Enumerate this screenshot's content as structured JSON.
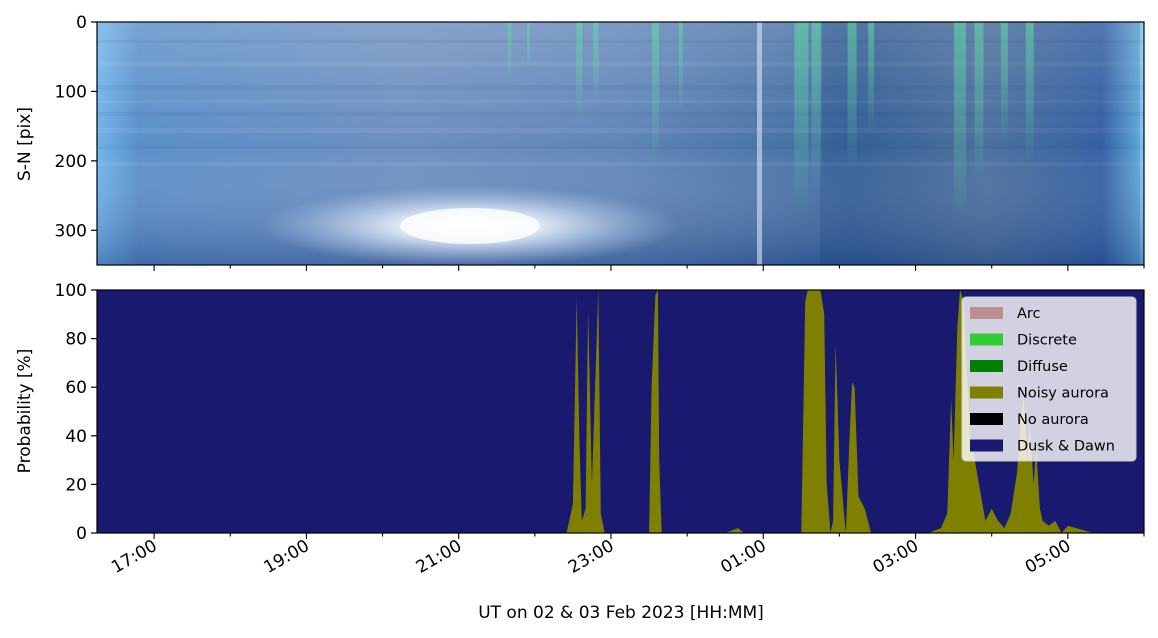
{
  "chart_data": [
    {
      "type": "heatmap",
      "description_kind": "keogram",
      "ylabel": "S-N [pix]",
      "yticks": [
        0,
        100,
        200,
        300
      ],
      "ylim": [
        350,
        0
      ],
      "x_shared": true
    },
    {
      "type": "area",
      "ylabel": "Probability [%]",
      "xlabel": "UT on 02 & 03 Feb 2023 [HH:MM]",
      "ylim": [
        0,
        100
      ],
      "yticks": [
        0,
        20,
        40,
        60,
        80,
        100
      ],
      "xlim": [
        "16:15",
        "06:00"
      ],
      "xticks": [
        "17:00",
        "19:00",
        "21:00",
        "23:00",
        "01:00",
        "03:00",
        "05:00"
      ],
      "legend_position": "upper-right",
      "legend": [
        {
          "name": "Arc",
          "color": "#bc8f8f"
        },
        {
          "name": "Discrete",
          "color": "#32cd32"
        },
        {
          "name": "Diffuse",
          "color": "#008000"
        },
        {
          "name": "Noisy aurora",
          "color": "#808000"
        },
        {
          "name": "No aurora",
          "color": "#000000"
        },
        {
          "name": "Dusk & Dawn",
          "color": "#191970"
        }
      ],
      "series": [
        {
          "name": "Noisy aurora",
          "x": [
            "22:25",
            "22:30",
            "22:33",
            "22:35",
            "22:37",
            "22:40",
            "22:42",
            "22:45",
            "22:50",
            "22:52",
            "22:55",
            "23:00",
            "23:30",
            "23:32",
            "23:35",
            "23:37",
            "23:38",
            "23:40",
            "23:45",
            "00:30",
            "00:40",
            "00:45",
            "01:30",
            "01:33",
            "01:35",
            "01:40",
            "01:45",
            "01:48",
            "01:50",
            "01:53",
            "01:55",
            "01:57",
            "02:00",
            "02:05",
            "02:08",
            "02:10",
            "02:12",
            "02:15",
            "02:20",
            "02:25",
            "02:30",
            "02:40",
            "03:10",
            "03:20",
            "03:25",
            "03:28",
            "03:30",
            "03:33",
            "03:35",
            "03:38",
            "03:40",
            "03:43",
            "03:45",
            "03:50",
            "03:55",
            "04:00",
            "04:05",
            "04:10",
            "04:15",
            "04:20",
            "04:25",
            "04:28",
            "04:30",
            "04:33",
            "04:35",
            "04:38",
            "04:40",
            "04:45",
            "04:50",
            "04:55",
            "05:00",
            "05:20"
          ],
          "values": [
            0,
            12,
            97,
            40,
            5,
            10,
            92,
            20,
            100,
            8,
            0,
            0,
            0,
            60,
            98,
            100,
            30,
            0,
            0,
            0,
            2,
            0,
            0,
            95,
            100,
            100,
            100,
            90,
            20,
            0,
            5,
            78,
            30,
            0,
            40,
            62,
            60,
            15,
            10,
            0,
            0,
            0,
            0,
            2,
            8,
            55,
            30,
            85,
            100,
            95,
            70,
            40,
            35,
            20,
            5,
            10,
            5,
            2,
            8,
            25,
            58,
            30,
            45,
            20,
            35,
            10,
            5,
            3,
            5,
            0,
            3,
            0
          ]
        },
        {
          "name": "Dusk & Dawn",
          "note": "complement of other classes; fills remaining probability to 100%"
        }
      ]
    }
  ]
}
